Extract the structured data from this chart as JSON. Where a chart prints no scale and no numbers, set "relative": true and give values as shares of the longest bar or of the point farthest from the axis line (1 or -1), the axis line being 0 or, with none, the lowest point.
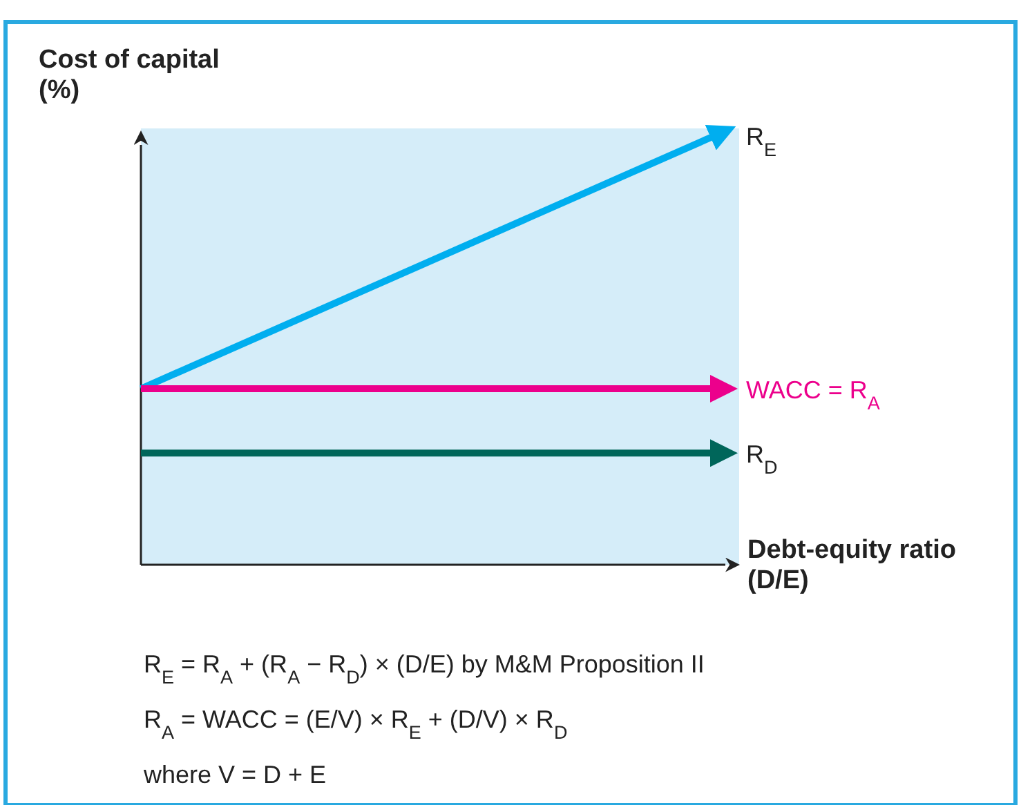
{
  "chart_data": {
    "type": "line",
    "relative": true,
    "ylabel": "Cost of capital (%)",
    "xlabel": "Debt-equity ratio (D/E)",
    "categories": [
      null,
      null
    ],
    "legend": false,
    "bands": [
      {
        "axis": "y",
        "from": 0,
        "to": 1,
        "color": "#d5edf9"
      }
    ],
    "series": [
      {
        "name": "R$_{E}$",
        "color": "#00aeef",
        "values": [
          0.41,
          1
        ]
      },
      {
        "name": "WACC = R$_{A}$",
        "color": "#ec008c",
        "values": [
          0.41,
          0.41
        ]
      },
      {
        "name": "R$_{D}$",
        "color": "#00665a",
        "values": [
          0.26,
          0.26
        ]
      }
    ],
    "annotations": [
      "R$_{E}$ = R$_{A}$ + (R$_{A}$ − R$_{D}$) × (D/E) by M&M Proposition II",
      "R$_{A}$ = WACC = (E/V) × R$_{E}$ + (D/V) × R$_{D}$",
      "where V = D + E"
    ]
  }
}
